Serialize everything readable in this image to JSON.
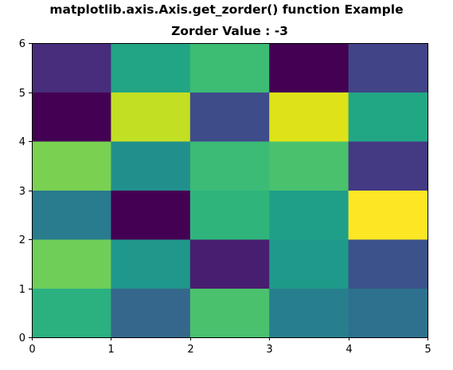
{
  "figure": {
    "suptitle": "matplotlib.axis.Axis.get_zorder() function Example",
    "axes_title": "Zorder Value : -3"
  },
  "chart_data": {
    "type": "heatmap",
    "title": "Zorder Value : -3",
    "suptitle": "matplotlib.axis.Axis.get_zorder() function Example",
    "xlabel": "",
    "ylabel": "",
    "xlim": [
      0,
      5
    ],
    "ylim": [
      0,
      6
    ],
    "xticks": [
      0,
      1,
      2,
      3,
      4,
      5
    ],
    "yticks": [
      0,
      1,
      2,
      3,
      4,
      5,
      6
    ],
    "grid": false,
    "colormap": "viridis",
    "cell_colors_rows_bottom_to_top": [
      [
        "#2bb07f",
        "#35678c",
        "#4ac16d",
        "#277f8e",
        "#2d718e"
      ],
      [
        "#6ece58",
        "#1f978b",
        "#481f70",
        "#1f9a8a",
        "#3b528b"
      ],
      [
        "#297b8e",
        "#440154",
        "#2fb47c",
        "#1f9f88",
        "#fde725"
      ],
      [
        "#7ad151",
        "#21908d",
        "#3bbb75",
        "#4ac16d",
        "#443983"
      ],
      [
        "#440154",
        "#c2df23",
        "#3e4c8a",
        "#dde318",
        "#22a785"
      ],
      [
        "#472d7b",
        "#21a585",
        "#3dbc74",
        "#440154",
        "#414487"
      ]
    ]
  }
}
